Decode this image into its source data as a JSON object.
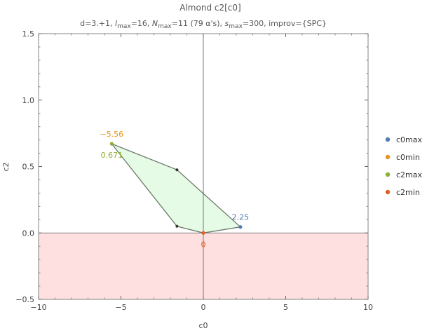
{
  "chart_data": {
    "type": "scatter",
    "title": "Almond c2[c0]",
    "subtitle": {
      "prefix": "d=3.+1, ",
      "l_symbol": "l",
      "l_sub": "max",
      "l_rest": "=16, ",
      "n_symbol": "N",
      "n_sub": "max",
      "n_rest": "=11 (79 α's), ",
      "s_symbol": "s",
      "s_sub": "max",
      "s_rest": "=300, improv={SPC}"
    },
    "xlabel": "c0",
    "ylabel": "c2",
    "xlim": [
      -10,
      10
    ],
    "ylim": [
      -0.5,
      1.5
    ],
    "x_ticks": [
      -10,
      -5,
      0,
      5,
      10
    ],
    "x_tick_labels": [
      "−10",
      "−5",
      "0",
      "5",
      "10"
    ],
    "y_ticks": [
      -0.5,
      0,
      0.5,
      1,
      1.5
    ],
    "y_tick_labels": [
      "−0.5",
      "0.0",
      "0.5",
      "1.0",
      "1.5"
    ],
    "excluded_region": {
      "y_from": -0.5,
      "y_to": 0,
      "color": "#ffe0e0"
    },
    "allowed_polygon": {
      "fill": "#e6fbe6",
      "stroke": "#6a7a6a",
      "vertices": [
        {
          "x": -5.56,
          "y": 0.671
        },
        {
          "x": -1.6,
          "y": 0.475
        },
        {
          "x": 2.25,
          "y": 0.045
        },
        {
          "x": 0,
          "y": 0
        },
        {
          "x": -1.6,
          "y": 0.05
        },
        {
          "x": -5.56,
          "y": 0.671
        }
      ]
    },
    "vertex_points": [
      {
        "x": -1.6,
        "y": 0.475,
        "color": "#333333"
      },
      {
        "x": -1.6,
        "y": 0.05,
        "color": "#333333"
      }
    ],
    "series": [
      {
        "name": "c0max",
        "color": "#4f7cb4",
        "x": 2.25,
        "y": 0.045,
        "label": "2.25",
        "label_pos": "above"
      },
      {
        "name": "c0min",
        "color": "#e5951e",
        "x": -5.56,
        "y": 0.671,
        "label": "−5.56",
        "label_pos": "above"
      },
      {
        "name": "c2max",
        "color": "#8fb030",
        "x": -5.56,
        "y": 0.671,
        "label": "0.671",
        "label_pos": "below"
      },
      {
        "name": "c2min",
        "color": "#e35d2c",
        "x": 0,
        "y": 0,
        "label": "0",
        "label_pos": "below"
      }
    ],
    "legend": {
      "placement": "right"
    }
  }
}
